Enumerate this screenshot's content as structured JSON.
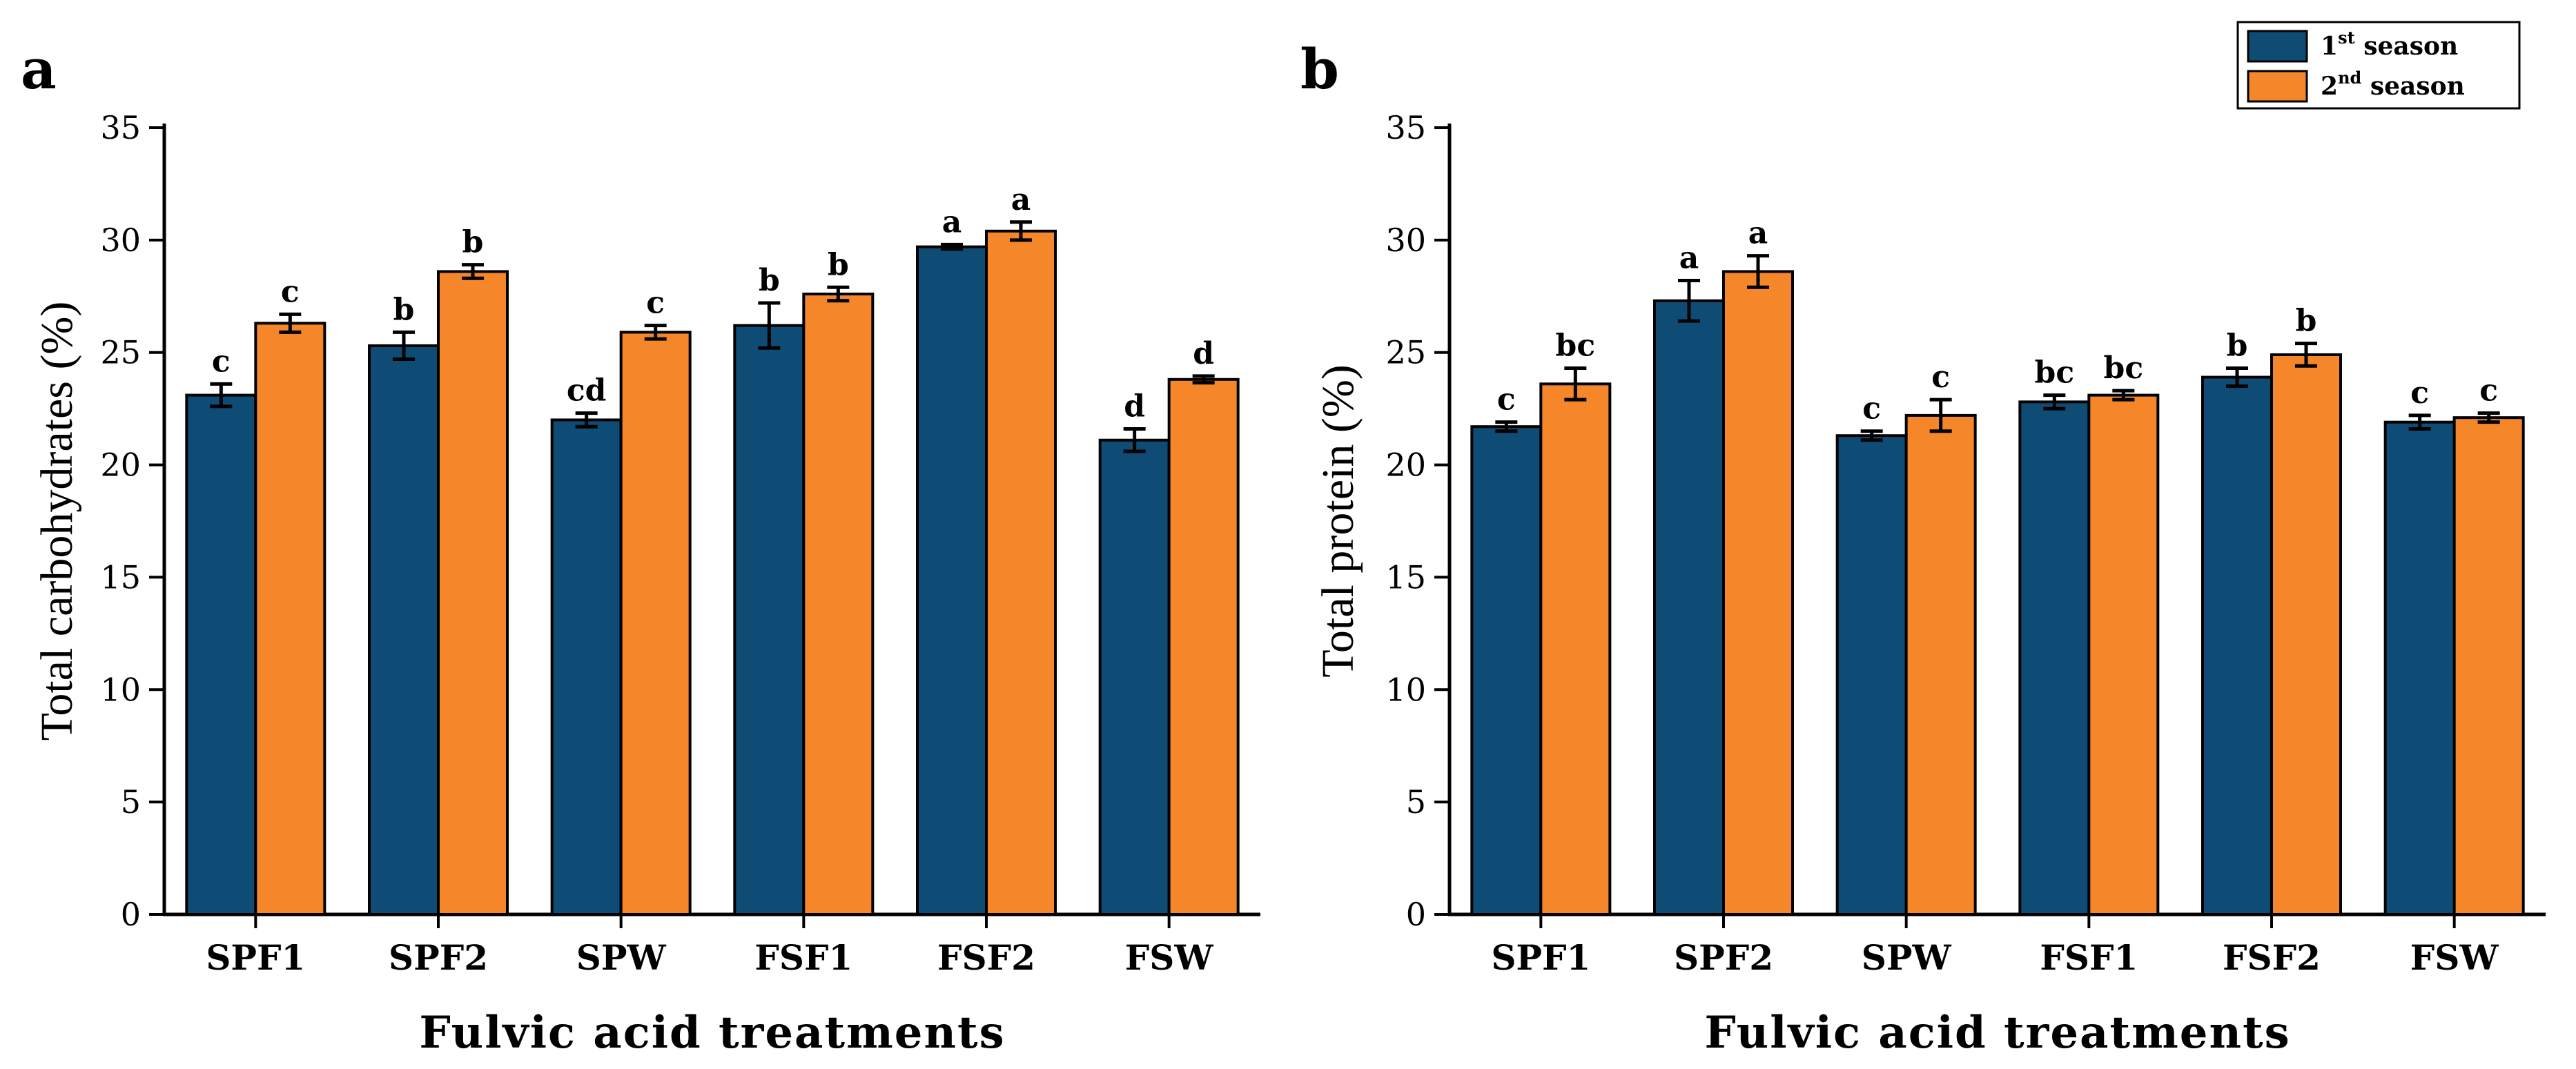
{
  "colors": {
    "series1": "#0f4c75",
    "series2": "#f5862a",
    "axis": "#000000"
  },
  "legend": {
    "placement": "top-right",
    "items": [
      {
        "base": "1",
        "sup": "st",
        "rest": " season"
      },
      {
        "base": "2",
        "sup": "nd",
        "rest": " season"
      }
    ]
  },
  "chart_data": [
    {
      "type": "bar",
      "panel_label": "a",
      "ylabel": "Total carbohydrates (%)",
      "xlabel": "Fulvic acid treatments",
      "ylim": [
        0,
        35
      ],
      "yticks": [
        0,
        5,
        10,
        15,
        20,
        25,
        30,
        35
      ],
      "categories": [
        "SPF1",
        "SPF2",
        "SPW",
        "FSF1",
        "FSF2",
        "FSW"
      ],
      "series": [
        {
          "values": [
            23.1,
            25.3,
            22.0,
            26.2,
            29.7,
            21.1
          ],
          "errors": [
            0.5,
            0.6,
            0.3,
            1.0,
            0.1,
            0.5
          ],
          "labels": [
            "c",
            "b",
            "cd",
            "b",
            "a",
            "d"
          ]
        },
        {
          "values": [
            26.3,
            28.6,
            25.9,
            27.6,
            30.4,
            23.8
          ],
          "errors": [
            0.4,
            0.3,
            0.3,
            0.3,
            0.4,
            0.15
          ],
          "labels": [
            "c",
            "b",
            "c",
            "b",
            "a",
            "d"
          ]
        }
      ]
    },
    {
      "type": "bar",
      "panel_label": "b",
      "ylabel": "Total protein (%)",
      "xlabel": "Fulvic acid treatments",
      "ylim": [
        0,
        35
      ],
      "yticks": [
        0,
        5,
        10,
        15,
        20,
        25,
        30,
        35
      ],
      "categories": [
        "SPF1",
        "SPF2",
        "SPW",
        "FSF1",
        "FSF2",
        "FSW"
      ],
      "series": [
        {
          "values": [
            21.7,
            27.3,
            21.3,
            22.8,
            23.9,
            21.9
          ],
          "errors": [
            0.2,
            0.9,
            0.2,
            0.3,
            0.4,
            0.3
          ],
          "labels": [
            "c",
            "a",
            "c",
            "bc",
            "b",
            "c"
          ]
        },
        {
          "values": [
            23.6,
            28.6,
            22.2,
            23.1,
            24.9,
            22.1
          ],
          "errors": [
            0.7,
            0.7,
            0.7,
            0.2,
            0.5,
            0.2
          ],
          "labels": [
            "bc",
            "a",
            "c",
            "bc",
            "b",
            "c"
          ]
        }
      ]
    }
  ]
}
